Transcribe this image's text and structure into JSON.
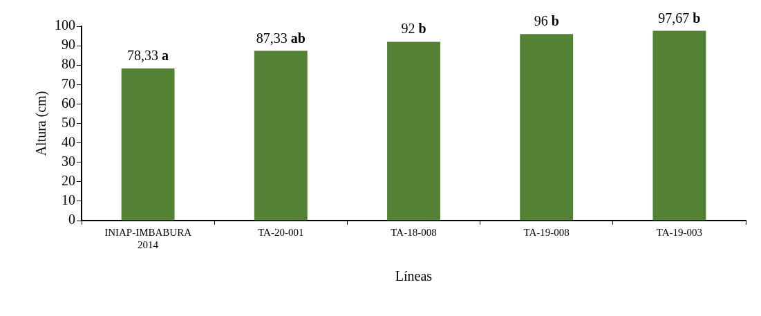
{
  "chart_data": {
    "type": "bar",
    "xlabel": "Líneas",
    "ylabel": "Altura (cm)",
    "categories": [
      "INIAP-IMBABURA 2014",
      "TA-20-001",
      "TA-18-008",
      "TA-19-008",
      "TA-19-003"
    ],
    "values": [
      78.33,
      87.33,
      92,
      96,
      97.67
    ],
    "value_labels": [
      "78,33 a",
      "87,33 ab",
      "92 b",
      "96 b",
      "97,67 b"
    ],
    "color": "#548235",
    "ylim": [
      0,
      100
    ],
    "yticks": [
      0,
      10,
      20,
      30,
      40,
      50,
      60,
      70,
      80,
      90,
      100
    ],
    "grid": false,
    "legend": false
  }
}
